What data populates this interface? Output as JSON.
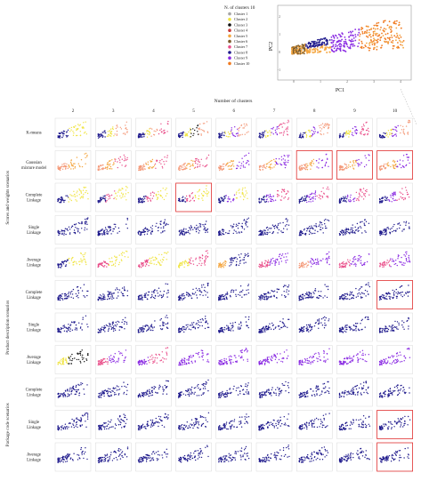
{
  "legend": {
    "title": "N. of clusters 10",
    "items": [
      {
        "label": "Cluster 1",
        "color": "#a6a6a6"
      },
      {
        "label": "Cluster 2",
        "color": "#f0e442"
      },
      {
        "label": "Cluster 3",
        "color": "#111111"
      },
      {
        "label": "Cluster 4",
        "color": "#c83c3c"
      },
      {
        "label": "Cluster 5",
        "color": "#f4a640"
      },
      {
        "label": "Cluster 6",
        "color": "#7a5a2a"
      },
      {
        "label": "Cluster 7",
        "color": "#e94f8a"
      },
      {
        "label": "Cluster 8",
        "color": "#1f1a8c"
      },
      {
        "label": "Cluster 9",
        "color": "#8a2be2"
      },
      {
        "label": "Cluster 10",
        "color": "#f07a20"
      }
    ]
  },
  "top_chart": {
    "xlabel": "PC1",
    "ylabel": "PC2",
    "x_ticks": [
      "0",
      "1",
      "2",
      "3",
      "4"
    ],
    "y_ticks": [
      "2",
      "1",
      "0",
      "-1"
    ]
  },
  "grid": {
    "xlabel": "Number of clusters",
    "columns": [
      "2",
      "3",
      "4",
      "5",
      "6",
      "7",
      "8",
      "9",
      "10"
    ],
    "scenarios": [
      {
        "name": "Scores and weights scenarios",
        "rows": [
          0,
          1,
          2,
          3,
          4
        ]
      },
      {
        "name": "Product description scenarios",
        "rows": [
          5,
          6,
          7
        ]
      },
      {
        "name": "Package code scenarios",
        "rows": [
          8,
          9,
          10
        ]
      }
    ],
    "rows": [
      {
        "label": [
          "K-means"
        ]
      },
      {
        "label": [
          "Gaussian",
          "mixture model"
        ]
      },
      {
        "label": [
          "Complete",
          "Linkage"
        ]
      },
      {
        "label": [
          "Single",
          "Linkage"
        ]
      },
      {
        "label": [
          "Average",
          "Linkage"
        ]
      },
      {
        "label": [
          "Complete",
          "Linkage"
        ]
      },
      {
        "label": [
          "Single",
          "Linkage"
        ]
      },
      {
        "label": [
          "Average",
          "Linkage"
        ]
      },
      {
        "label": [
          "Complete",
          "Linkage"
        ]
      },
      {
        "label": [
          "Single",
          "Linkage"
        ]
      },
      {
        "label": [
          "Average",
          "Linkage"
        ]
      }
    ]
  },
  "chart_data": {
    "type": "scatter",
    "xlabel": "PC1",
    "ylabel": "PC2",
    "colors": {
      "navy": "#1f1a8c",
      "yellow": "#f0e442",
      "orange": "#f4a640",
      "pink": "#e94f8a",
      "purple": "#8a2be2",
      "salmon": "#f49a7a",
      "black": "#111111",
      "highlight": "#e03030"
    },
    "panels_colors": [
      [
        [
          "navy",
          "yellow"
        ],
        [
          "navy",
          "yellow",
          "salmon"
        ],
        [
          "navy",
          "yellow",
          "salmon",
          "pink"
        ],
        [
          "navy",
          "yellow",
          "black",
          "salmon"
        ],
        [
          "navy",
          "yellow",
          "purple",
          "salmon"
        ],
        [
          "navy",
          "yellow",
          "purple",
          "pink"
        ],
        [
          "navy",
          "yellow",
          "purple",
          "salmon"
        ],
        [
          "navy",
          "yellow",
          "purple",
          "pink"
        ],
        [
          "navy",
          "yellow",
          "purple",
          "salmon"
        ]
      ],
      [
        [
          "salmon",
          "orange"
        ],
        [
          "salmon",
          "orange",
          "pink"
        ],
        [
          "salmon",
          "orange",
          "pink"
        ],
        [
          "salmon",
          "orange",
          "pink"
        ],
        [
          "salmon",
          "orange",
          "purple"
        ],
        [
          "salmon",
          "orange",
          "purple"
        ],
        [
          "salmon",
          "orange",
          "purple"
        ],
        [
          "salmon",
          "orange",
          "purple"
        ],
        [
          "salmon",
          "orange",
          "purple"
        ]
      ],
      [
        [
          "navy",
          "yellow"
        ],
        [
          "navy",
          "pink",
          "yellow"
        ],
        [
          "navy",
          "pink",
          "yellow"
        ],
        [
          "navy",
          "pink",
          "yellow"
        ],
        [
          "navy",
          "purple",
          "yellow"
        ],
        [
          "navy",
          "purple",
          "pink"
        ],
        [
          "navy",
          "purple",
          "pink"
        ],
        [
          "navy",
          "purple",
          "pink"
        ],
        [
          "navy",
          "purple",
          "pink"
        ]
      ],
      [
        [
          "navy"
        ],
        [
          "navy"
        ],
        [
          "navy"
        ],
        [
          "navy"
        ],
        [
          "navy"
        ],
        [
          "navy"
        ],
        [
          "navy"
        ],
        [
          "navy"
        ],
        [
          "navy"
        ]
      ],
      [
        [
          "navy",
          "yellow"
        ],
        [
          "pink",
          "yellow"
        ],
        [
          "pink",
          "yellow"
        ],
        [
          "yellow",
          "pink"
        ],
        [
          "orange",
          "navy"
        ],
        [
          "pink",
          "purple"
        ],
        [
          "salmon",
          "purple"
        ],
        [
          "pink",
          "purple"
        ],
        [
          "pink",
          "purple"
        ]
      ],
      [
        [
          "navy"
        ],
        [
          "navy"
        ],
        [
          "navy"
        ],
        [
          "navy"
        ],
        [
          "navy"
        ],
        [
          "navy"
        ],
        [
          "navy"
        ],
        [
          "navy"
        ],
        [
          "navy"
        ]
      ],
      [
        [
          "navy"
        ],
        [
          "navy"
        ],
        [
          "navy"
        ],
        [
          "navy"
        ],
        [
          "navy"
        ],
        [
          "navy"
        ],
        [
          "navy"
        ],
        [
          "navy"
        ],
        [
          "navy"
        ]
      ],
      [
        [
          "yellow",
          "black"
        ],
        [
          "pink",
          "purple"
        ],
        [
          "purple",
          "pink"
        ],
        [
          "purple"
        ],
        [
          "purple"
        ],
        [
          "purple"
        ],
        [
          "purple"
        ],
        [
          "purple"
        ],
        [
          "purple"
        ]
      ],
      [
        [
          "navy"
        ],
        [
          "navy"
        ],
        [
          "navy"
        ],
        [
          "navy"
        ],
        [
          "navy"
        ],
        [
          "navy"
        ],
        [
          "navy"
        ],
        [
          "navy"
        ],
        [
          "navy"
        ]
      ],
      [
        [
          "navy"
        ],
        [
          "navy"
        ],
        [
          "navy"
        ],
        [
          "navy"
        ],
        [
          "navy"
        ],
        [
          "navy"
        ],
        [
          "navy"
        ],
        [
          "navy"
        ],
        [
          "navy"
        ]
      ],
      [
        [
          "navy"
        ],
        [
          "navy"
        ],
        [
          "navy"
        ],
        [
          "navy"
        ],
        [
          "navy"
        ],
        [
          "navy"
        ],
        [
          "navy"
        ],
        [
          "navy"
        ],
        [
          "navy"
        ]
      ]
    ],
    "highlighted_panels": [
      [
        1,
        6
      ],
      [
        1,
        7
      ],
      [
        1,
        8
      ],
      [
        2,
        3
      ],
      [
        5,
        8
      ],
      [
        9,
        8
      ],
      [
        10,
        8
      ]
    ]
  }
}
